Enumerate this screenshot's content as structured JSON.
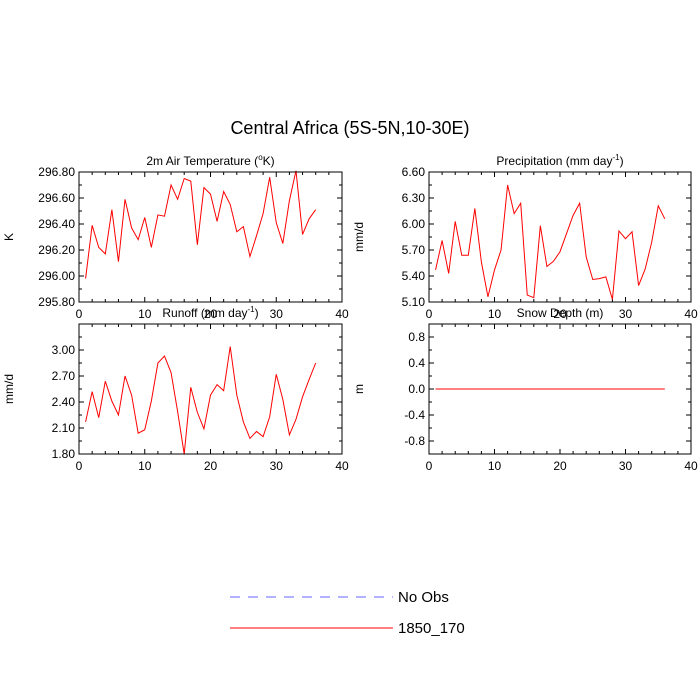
{
  "figure": {
    "title": "Central Africa (5S-5N,10-30E)"
  },
  "chart_data": [
    {
      "type": "line",
      "title": "2m Air Temperature (",
      "title_sup": "o",
      "title_after": "K)",
      "ylabel": "K",
      "xlabel": "",
      "xlim": [
        0,
        40
      ],
      "ylim": [
        295.8,
        296.8
      ],
      "xticks": [
        0,
        10,
        20,
        30,
        40
      ],
      "xtick_labels": [
        "0",
        "10",
        "20",
        "30",
        "40"
      ],
      "yticks": [
        295.8,
        296.0,
        296.2,
        296.4,
        296.6,
        296.8
      ],
      "ytick_labels": [
        "295.80",
        "296.00",
        "296.20",
        "296.40",
        "296.60",
        "296.80"
      ],
      "series": [
        {
          "name": "1850_170",
          "color": "#ff0000",
          "x": [
            1,
            2,
            3,
            4,
            5,
            6,
            7,
            8,
            9,
            10,
            11,
            12,
            13,
            14,
            15,
            16,
            17,
            18,
            19,
            20,
            21,
            22,
            23,
            24,
            25,
            26,
            27,
            28,
            29,
            30,
            31,
            32,
            33,
            34,
            35,
            36
          ],
          "y": [
            295.98,
            296.39,
            296.22,
            296.17,
            296.51,
            296.11,
            296.59,
            296.37,
            296.28,
            296.45,
            296.22,
            296.47,
            296.46,
            296.7,
            296.59,
            296.75,
            296.73,
            296.24,
            296.68,
            296.63,
            296.42,
            296.65,
            296.55,
            296.34,
            296.38,
            296.15,
            296.31,
            296.48,
            296.76,
            296.41,
            296.25,
            296.58,
            296.81,
            296.32,
            296.44,
            296.51
          ]
        }
      ]
    },
    {
      "type": "line",
      "title": "Precipitation (mm day",
      "title_sup": "-1",
      "title_after": ")",
      "ylabel": "mm/d",
      "xlabel": "",
      "xlim": [
        0,
        40
      ],
      "ylim": [
        5.1,
        6.6
      ],
      "xticks": [
        0,
        10,
        20,
        30,
        40
      ],
      "xtick_labels": [
        "0",
        "10",
        "20",
        "30",
        "40"
      ],
      "yticks": [
        5.1,
        5.4,
        5.7,
        6.0,
        6.3,
        6.6
      ],
      "ytick_labels": [
        "5.10",
        "5.40",
        "5.70",
        "6.00",
        "6.30",
        "6.60"
      ],
      "series": [
        {
          "name": "1850_170",
          "color": "#ff0000",
          "x": [
            1,
            2,
            3,
            4,
            5,
            6,
            7,
            8,
            9,
            10,
            11,
            12,
            13,
            14,
            15,
            16,
            17,
            18,
            19,
            20,
            21,
            22,
            23,
            24,
            25,
            26,
            27,
            28,
            29,
            30,
            31,
            32,
            33,
            34,
            35,
            36
          ],
          "y": [
            5.47,
            5.81,
            5.43,
            6.03,
            5.64,
            5.64,
            6.18,
            5.56,
            5.16,
            5.47,
            5.7,
            6.45,
            6.12,
            6.24,
            5.18,
            5.15,
            5.98,
            5.51,
            5.57,
            5.68,
            5.89,
            6.1,
            6.24,
            5.62,
            5.36,
            5.37,
            5.39,
            5.13,
            5.92,
            5.83,
            5.91,
            5.29,
            5.48,
            5.79,
            6.21,
            6.06
          ]
        }
      ]
    },
    {
      "type": "line",
      "title": "Runoff (mm day",
      "title_sup": "-1",
      "title_after": ")",
      "ylabel": "mm/d",
      "xlabel": "",
      "xlim": [
        0,
        40
      ],
      "ylim": [
        1.8,
        3.3
      ],
      "xticks": [
        0,
        10,
        20,
        30,
        40
      ],
      "xtick_labels": [
        "0",
        "10",
        "20",
        "30",
        "40"
      ],
      "yticks": [
        1.8,
        2.1,
        2.4,
        2.7,
        3.0
      ],
      "ytick_labels": [
        "1.80",
        "2.10",
        "2.40",
        "2.70",
        "3.00"
      ],
      "series": [
        {
          "name": "1850_170",
          "color": "#ff0000",
          "x": [
            1,
            2,
            3,
            4,
            5,
            6,
            7,
            8,
            9,
            10,
            11,
            12,
            13,
            14,
            15,
            16,
            17,
            18,
            19,
            20,
            21,
            22,
            23,
            24,
            25,
            26,
            27,
            28,
            29,
            30,
            31,
            32,
            33,
            34,
            35,
            36
          ],
          "y": [
            2.17,
            2.52,
            2.22,
            2.64,
            2.41,
            2.25,
            2.7,
            2.48,
            2.04,
            2.08,
            2.41,
            2.85,
            2.93,
            2.74,
            2.29,
            1.8,
            2.57,
            2.28,
            2.09,
            2.48,
            2.6,
            2.53,
            3.04,
            2.48,
            2.17,
            1.98,
            2.06,
            2.0,
            2.23,
            2.72,
            2.43,
            2.02,
            2.2,
            2.46,
            2.66,
            2.85
          ]
        }
      ]
    },
    {
      "type": "line",
      "title": "Snow Depth (m)",
      "title_sup": "",
      "title_after": "",
      "ylabel": "m",
      "xlabel": "",
      "xlim": [
        0,
        40
      ],
      "ylim": [
        -1.0,
        1.0
      ],
      "xticks": [
        0,
        10,
        20,
        30,
        40
      ],
      "xtick_labels": [
        "0",
        "10",
        "20",
        "30",
        "40"
      ],
      "yticks": [
        -0.8,
        -0.4,
        0.0,
        0.4,
        0.8
      ],
      "ytick_labels": [
        "-0.8",
        "-0.4",
        "0.0",
        "0.4",
        "0.8"
      ],
      "series": [
        {
          "name": "1850_170",
          "color": "#ff0000",
          "x": [
            1,
            2,
            3,
            4,
            5,
            6,
            7,
            8,
            9,
            10,
            11,
            12,
            13,
            14,
            15,
            16,
            17,
            18,
            19,
            20,
            21,
            22,
            23,
            24,
            25,
            26,
            27,
            28,
            29,
            30,
            31,
            32,
            33,
            34,
            35,
            36
          ],
          "y": [
            0,
            0,
            0,
            0,
            0,
            0,
            0,
            0,
            0,
            0,
            0,
            0,
            0,
            0,
            0,
            0,
            0,
            0,
            0,
            0,
            0,
            0,
            0,
            0,
            0,
            0,
            0,
            0,
            0,
            0,
            0,
            0,
            0,
            0,
            0,
            0
          ]
        }
      ]
    }
  ],
  "legend": {
    "placement": "bottom-center",
    "items": [
      {
        "label": "No Obs",
        "color": "#6666ff",
        "style": "dashed"
      },
      {
        "label": "1850_170",
        "color": "#ff0000",
        "style": "solid"
      }
    ]
  }
}
